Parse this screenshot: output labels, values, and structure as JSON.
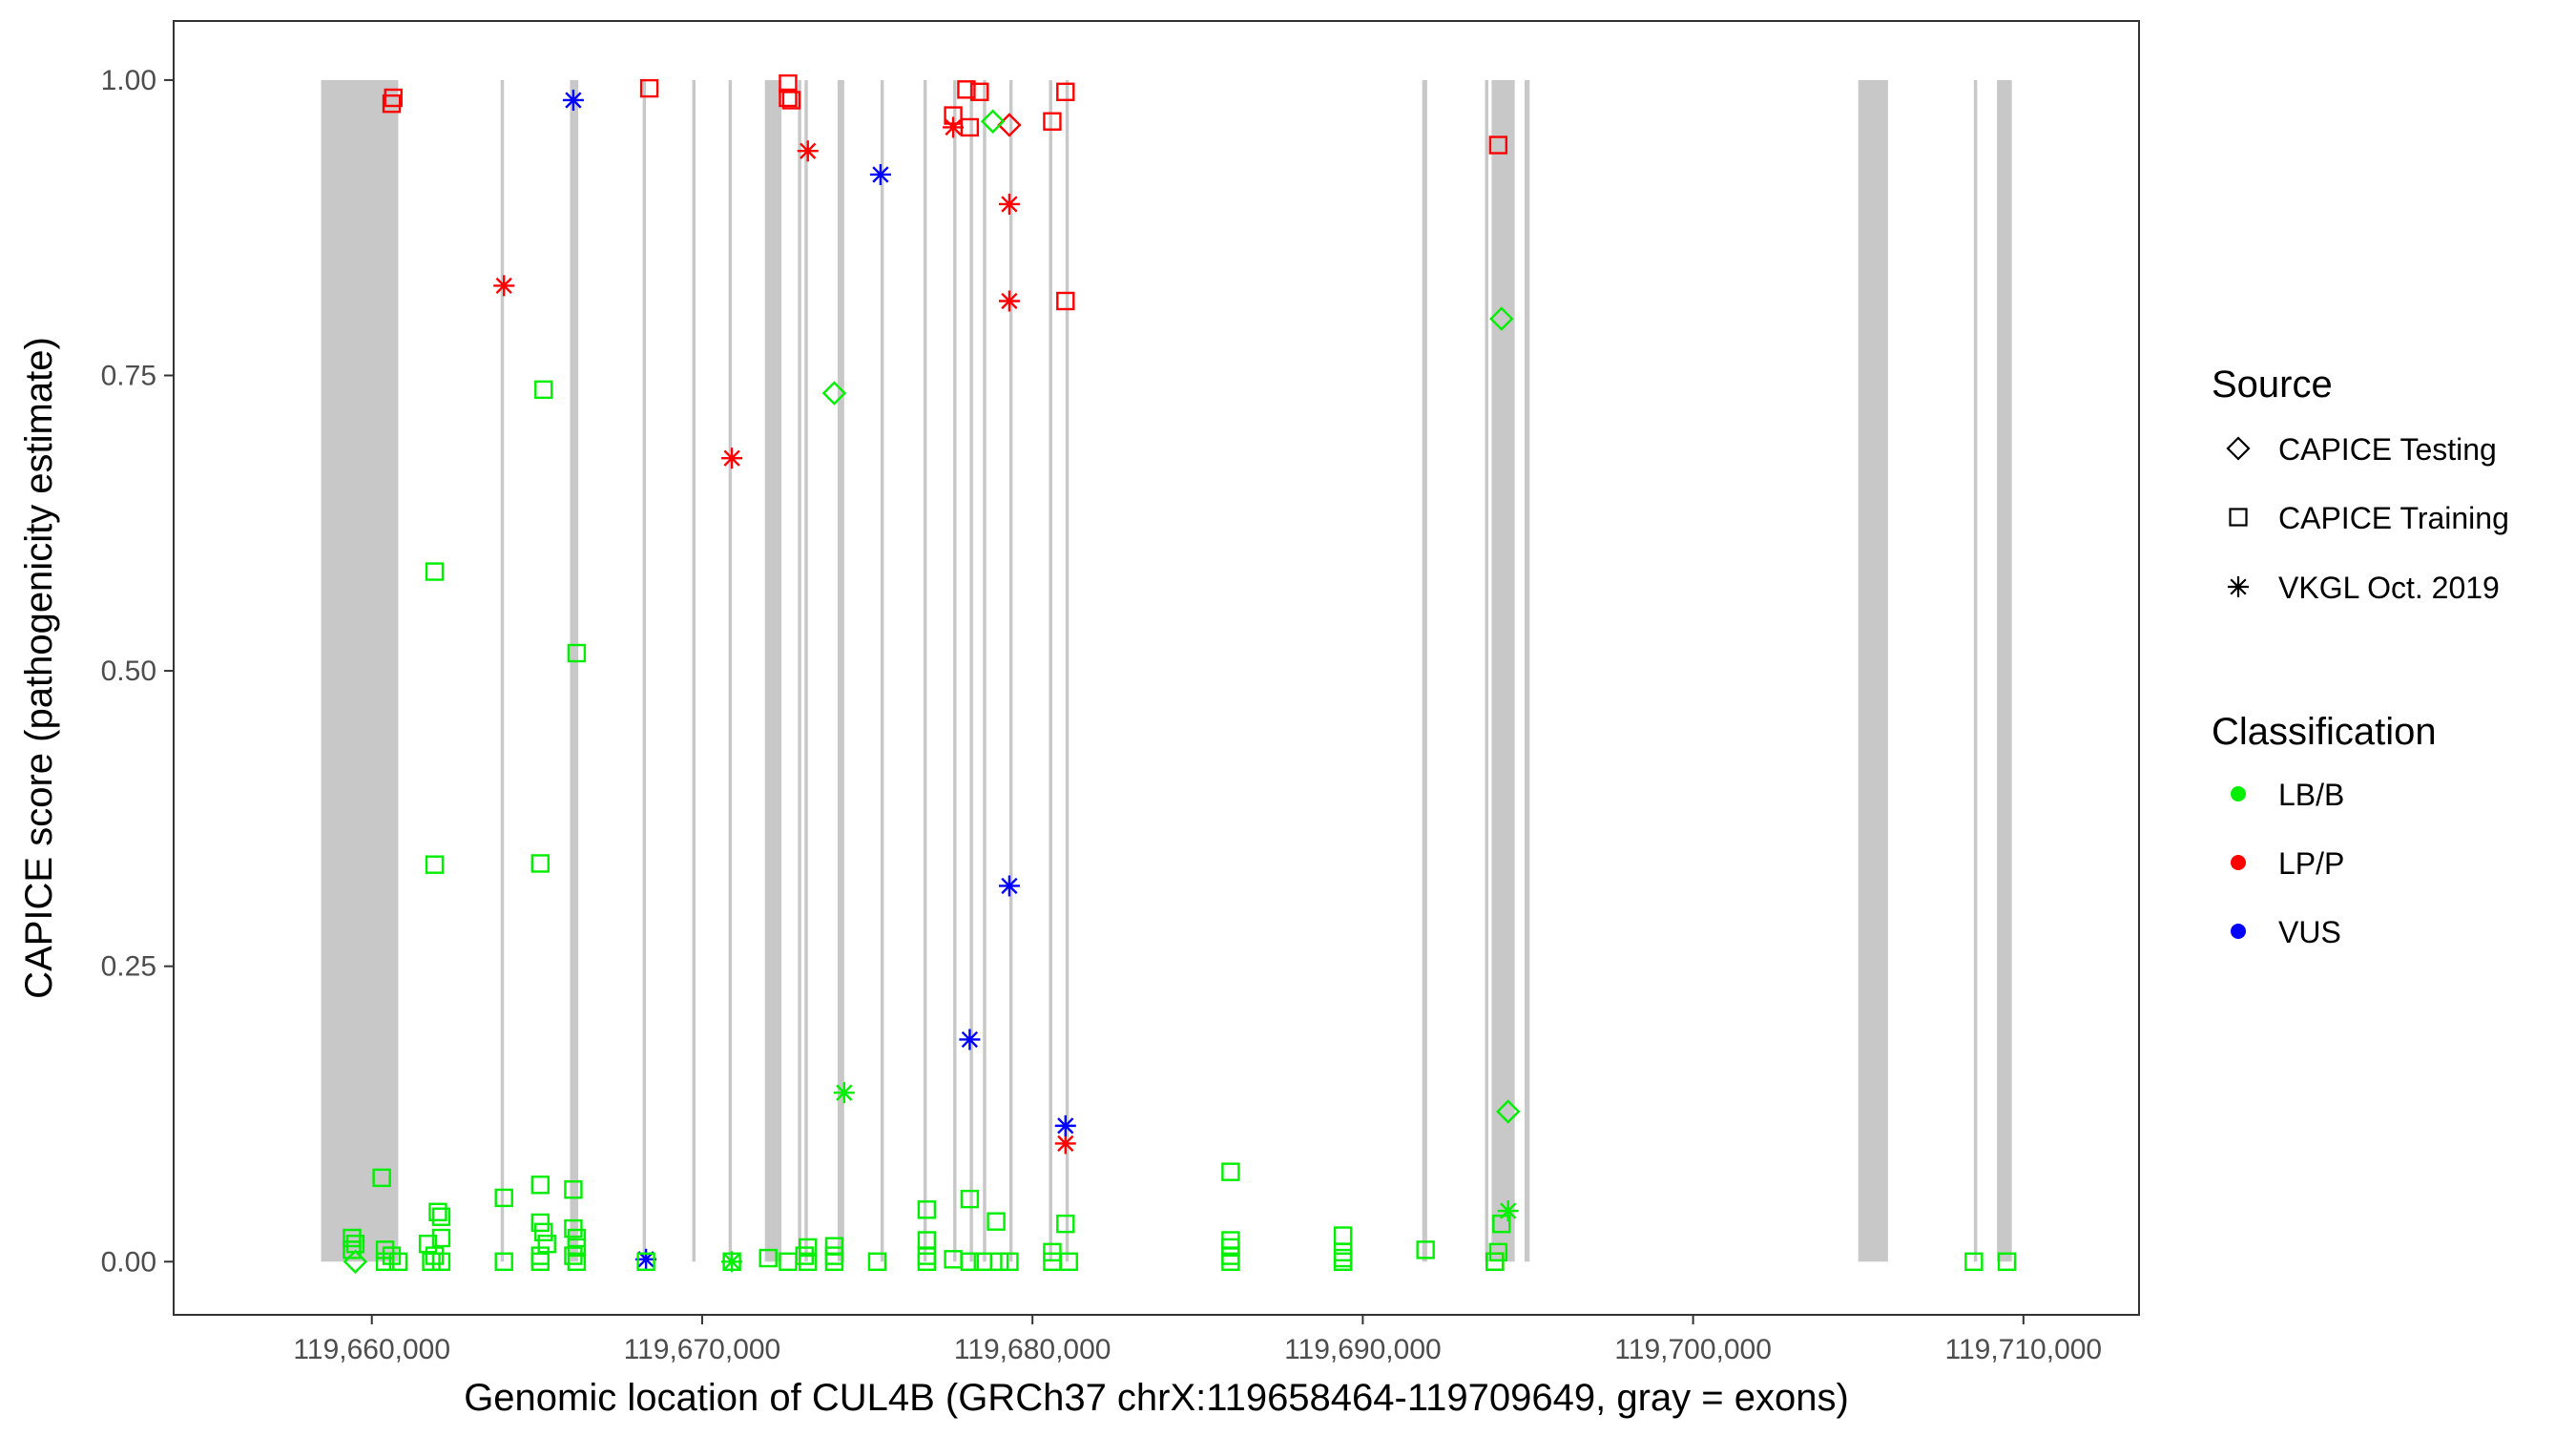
{
  "chart_data": {
    "type": "scatter",
    "xlabel": "Genomic location of CUL4B (GRCh37 chrX:119658464-119709649, gray = exons)",
    "ylabel": "CAPICE score (pathogenicity estimate)",
    "xlim": [
      119654000,
      119713500
    ],
    "ylim": [
      -0.045,
      1.05
    ],
    "x_ticks": [
      119660000,
      119670000,
      119680000,
      119690000,
      119700000,
      119710000
    ],
    "x_tick_labels": [
      "119,660,000",
      "119,670,000",
      "119,680,000",
      "119,690,000",
      "119,700,000",
      "119,710,000"
    ],
    "y_ticks": [
      0,
      0.25,
      0.5,
      0.75,
      1.0
    ],
    "y_tick_labels": [
      "0.00",
      "0.25",
      "0.50",
      "0.75",
      "1.00"
    ],
    "grid": false,
    "exon_color": "#c8c8c8",
    "exons": [
      [
        119658464,
        119660800
      ],
      [
        119663900,
        119664000
      ],
      [
        119666000,
        119666250
      ],
      [
        119668200,
        119668300
      ],
      [
        119669700,
        119669800
      ],
      [
        119670800,
        119670900
      ],
      [
        119671900,
        119672400
      ],
      [
        119672900,
        119673000
      ],
      [
        119673100,
        119673200
      ],
      [
        119674100,
        119674300
      ],
      [
        119675400,
        119675500
      ],
      [
        119676700,
        119676800
      ],
      [
        119677600,
        119677700
      ],
      [
        119678100,
        119678200
      ],
      [
        119678500,
        119678600
      ],
      [
        119679300,
        119679400
      ],
      [
        119680500,
        119680600
      ],
      [
        119681000,
        119681100
      ],
      [
        119691800,
        119691950
      ],
      [
        119693700,
        119693800
      ],
      [
        119693900,
        119694600
      ],
      [
        119694900,
        119695050
      ],
      [
        119705000,
        119705900
      ],
      [
        119708500,
        119708600
      ],
      [
        119709200,
        119709649
      ]
    ],
    "legend": {
      "position": "right",
      "source_title": "Source",
      "source_items": [
        {
          "label": "CAPICE Testing",
          "shape": "diamond"
        },
        {
          "label": "CAPICE Training",
          "shape": "square"
        },
        {
          "label": "VKGL Oct. 2019",
          "shape": "asterisk"
        }
      ],
      "classification_title": "Classification",
      "classification_items": [
        {
          "label": "LB/B",
          "color": "#00ee00"
        },
        {
          "label": "LP/P",
          "color": "#ff0000"
        },
        {
          "label": "VUS",
          "color": "#0000ff"
        }
      ]
    },
    "series": [
      {
        "source": "CAPICE Training",
        "classification": "LP/P",
        "shape": "square",
        "color": "#ff0000",
        "points": [
          [
            119660600,
            0.98
          ],
          [
            119660650,
            0.985
          ],
          [
            119668400,
            0.993
          ],
          [
            119672600,
            0.997
          ],
          [
            119672600,
            0.985
          ],
          [
            119672700,
            0.983
          ],
          [
            119677600,
            0.97
          ],
          [
            119678000,
            0.992
          ],
          [
            119678400,
            0.99
          ],
          [
            119678100,
            0.96
          ],
          [
            119680600,
            0.965
          ],
          [
            119681000,
            0.99
          ],
          [
            119681000,
            0.813
          ],
          [
            119694100,
            0.945
          ],
          [
            119694000,
            0.0
          ]
        ]
      },
      {
        "source": "VKGL Oct. 2019",
        "classification": "LP/P",
        "shape": "asterisk",
        "color": "#ff0000",
        "points": [
          [
            119664000,
            0.826
          ],
          [
            119670900,
            0.68
          ],
          [
            119673200,
            0.94
          ],
          [
            119677600,
            0.96
          ],
          [
            119679300,
            0.895
          ],
          [
            119679300,
            0.813
          ],
          [
            119681000,
            0.1
          ]
        ]
      },
      {
        "source": "CAPICE Testing",
        "classification": "LP/P",
        "shape": "diamond",
        "color": "#ff0000",
        "points": [
          [
            119679300,
            0.962
          ]
        ]
      },
      {
        "source": "VKGL Oct. 2019",
        "classification": "VUS",
        "shape": "asterisk",
        "color": "#0000ff",
        "points": [
          [
            119666100,
            0.983
          ],
          [
            119675400,
            0.92
          ],
          [
            119679300,
            0.318
          ],
          [
            119678100,
            0.188
          ],
          [
            119681000,
            0.115
          ],
          [
            119668300,
            0.002
          ]
        ]
      },
      {
        "source": "CAPICE Testing",
        "classification": "LB/B",
        "shape": "diamond",
        "color": "#00ee00",
        "points": [
          [
            119678800,
            0.965
          ],
          [
            119674000,
            0.735
          ],
          [
            119694200,
            0.798
          ],
          [
            119694400,
            0.127
          ],
          [
            119659500,
            0.0
          ]
        ]
      },
      {
        "source": "VKGL Oct. 2019",
        "classification": "LB/B",
        "shape": "asterisk",
        "color": "#00ee00",
        "points": [
          [
            119674300,
            0.143
          ],
          [
            119694400,
            0.043
          ],
          [
            119670900,
            0.0
          ]
        ]
      },
      {
        "source": "CAPICE Training",
        "classification": "LB/B",
        "shape": "square",
        "color": "#00ee00",
        "points": [
          [
            119665200,
            0.738
          ],
          [
            119661900,
            0.584
          ],
          [
            119666200,
            0.515
          ],
          [
            119661900,
            0.336
          ],
          [
            119665100,
            0.337
          ],
          [
            119660300,
            0.071
          ],
          [
            119664000,
            0.054
          ],
          [
            119665100,
            0.065
          ],
          [
            119666100,
            0.061
          ],
          [
            119662000,
            0.042
          ],
          [
            119662100,
            0.038
          ],
          [
            119676800,
            0.044
          ],
          [
            119678100,
            0.053
          ],
          [
            119686000,
            0.076
          ],
          [
            119681000,
            0.032
          ],
          [
            119678900,
            0.034
          ],
          [
            119659400,
            0.02
          ],
          [
            119659500,
            0.015
          ],
          [
            119659400,
            0.01
          ],
          [
            119660400,
            0.01
          ],
          [
            119660600,
            0.005
          ],
          [
            119661700,
            0.015
          ],
          [
            119662100,
            0.02
          ],
          [
            119661900,
            0.005
          ],
          [
            119665100,
            0.033
          ],
          [
            119665200,
            0.025
          ],
          [
            119665300,
            0.015
          ],
          [
            119665100,
            0.005
          ],
          [
            119666100,
            0.028
          ],
          [
            119666200,
            0.02
          ],
          [
            119666200,
            0.012
          ],
          [
            119666100,
            0.005
          ],
          [
            119673200,
            0.012
          ],
          [
            119673100,
            0.005
          ],
          [
            119674000,
            0.013
          ],
          [
            119674000,
            0.005
          ],
          [
            119676800,
            0.018
          ],
          [
            119676800,
            0.005
          ],
          [
            119686000,
            0.018
          ],
          [
            119686000,
            0.012
          ],
          [
            119686000,
            0.005
          ],
          [
            119689400,
            0.022
          ],
          [
            119689400,
            0.008
          ],
          [
            119689400,
            0.003
          ],
          [
            119691900,
            0.01
          ],
          [
            119694200,
            0.032
          ],
          [
            119694100,
            0.008
          ],
          [
            119680600,
            0.008
          ],
          [
            119660400,
            0.0
          ],
          [
            119660800,
            0.0
          ],
          [
            119661800,
            0.0
          ],
          [
            119662100,
            0.0
          ],
          [
            119664000,
            0.0
          ],
          [
            119665100,
            0.0
          ],
          [
            119666200,
            0.0
          ],
          [
            119668300,
            0.0
          ],
          [
            119670900,
            0.0
          ],
          [
            119672000,
            0.003
          ],
          [
            119672600,
            0.0
          ],
          [
            119673200,
            0.0
          ],
          [
            119674000,
            0.0
          ],
          [
            119675300,
            0.0
          ],
          [
            119676800,
            0.0
          ],
          [
            119677600,
            0.002
          ],
          [
            119678100,
            0.0
          ],
          [
            119678500,
            0.0
          ],
          [
            119679000,
            0.0
          ],
          [
            119679300,
            0.0
          ],
          [
            119680600,
            0.0
          ],
          [
            119681100,
            0.0
          ],
          [
            119686000,
            0.0
          ],
          [
            119689400,
            0.0
          ],
          [
            119694000,
            0.0
          ],
          [
            119708500,
            0.0
          ],
          [
            119709500,
            0.0
          ]
        ]
      }
    ]
  }
}
